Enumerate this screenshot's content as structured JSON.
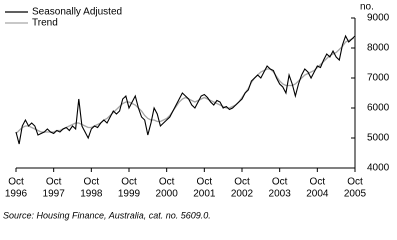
{
  "chart_data": {
    "type": "line",
    "x": [
      "1996-10",
      "1996-11",
      "1996-12",
      "1997-01",
      "1997-02",
      "1997-03",
      "1997-04",
      "1997-05",
      "1997-06",
      "1997-07",
      "1997-08",
      "1997-09",
      "1997-10",
      "1997-11",
      "1997-12",
      "1998-01",
      "1998-02",
      "1998-03",
      "1998-04",
      "1998-05",
      "1998-06",
      "1998-07",
      "1998-08",
      "1998-09",
      "1998-10",
      "1998-11",
      "1998-12",
      "1999-01",
      "1999-02",
      "1999-03",
      "1999-04",
      "1999-05",
      "1999-06",
      "1999-07",
      "1999-08",
      "1999-09",
      "1999-10",
      "1999-11",
      "1999-12",
      "2000-01",
      "2000-02",
      "2000-03",
      "2000-04",
      "2000-05",
      "2000-06",
      "2000-07",
      "2000-08",
      "2000-09",
      "2000-10",
      "2000-11",
      "2000-12",
      "2001-01",
      "2001-02",
      "2001-03",
      "2001-04",
      "2001-05",
      "2001-06",
      "2001-07",
      "2001-08",
      "2001-09",
      "2001-10",
      "2001-11",
      "2001-12",
      "2002-01",
      "2002-02",
      "2002-03",
      "2002-04",
      "2002-05",
      "2002-06",
      "2002-07",
      "2002-08",
      "2002-09",
      "2002-10",
      "2002-11",
      "2002-12",
      "2003-01",
      "2003-02",
      "2003-03",
      "2003-04",
      "2003-05",
      "2003-06",
      "2003-07",
      "2003-08",
      "2003-09",
      "2003-10",
      "2003-11",
      "2003-12",
      "2004-01",
      "2004-02",
      "2004-03",
      "2004-04",
      "2004-05",
      "2004-06",
      "2004-07",
      "2004-08",
      "2004-09",
      "2004-10",
      "2004-11",
      "2004-12",
      "2005-01",
      "2005-02",
      "2005-03",
      "2005-04",
      "2005-05",
      "2005-06",
      "2005-07",
      "2005-08",
      "2005-09",
      "2005-10"
    ],
    "series": [
      {
        "name": "Seasonally Adjusted",
        "color": "#000000",
        "values": [
          5200,
          4800,
          5400,
          5600,
          5400,
          5500,
          5400,
          5100,
          5150,
          5200,
          5300,
          5200,
          5150,
          5250,
          5200,
          5300,
          5350,
          5250,
          5400,
          5300,
          6300,
          5400,
          5200,
          5000,
          5300,
          5400,
          5350,
          5500,
          5600,
          5500,
          5700,
          5900,
          5800,
          5900,
          6300,
          6400,
          6000,
          6200,
          6400,
          6000,
          5700,
          5600,
          5100,
          5500,
          6000,
          5800,
          5400,
          5500,
          5600,
          5700,
          5900,
          6100,
          6300,
          6500,
          6400,
          6300,
          6100,
          6000,
          6200,
          6400,
          6450,
          6350,
          6200,
          6100,
          6250,
          6200,
          6000,
          6050,
          5950,
          6000,
          6100,
          6200,
          6300,
          6500,
          6600,
          6900,
          7000,
          7100,
          7000,
          7200,
          7400,
          7300,
          7250,
          7000,
          6800,
          6700,
          6500,
          7100,
          6800,
          6400,
          6800,
          7100,
          7300,
          7200,
          7000,
          7200,
          7400,
          7350,
          7600,
          7800,
          7700,
          7900,
          7700,
          7600,
          8100,
          8400,
          8200,
          8300,
          8400
        ]
      },
      {
        "name": "Trend",
        "color": "#a6a6a6",
        "values": [
          5150,
          5250,
          5350,
          5400,
          5400,
          5350,
          5300,
          5250,
          5200,
          5200,
          5200,
          5200,
          5200,
          5250,
          5250,
          5300,
          5350,
          5400,
          5450,
          5500,
          5500,
          5450,
          5400,
          5350,
          5350,
          5400,
          5450,
          5500,
          5600,
          5650,
          5750,
          5850,
          5950,
          6050,
          6150,
          6200,
          6200,
          6150,
          6100,
          6000,
          5900,
          5750,
          5650,
          5600,
          5600,
          5550,
          5550,
          5600,
          5650,
          5750,
          5900,
          6050,
          6200,
          6300,
          6350,
          6300,
          6250,
          6200,
          6250,
          6300,
          6350,
          6300,
          6250,
          6200,
          6150,
          6100,
          6050,
          6000,
          6000,
          6050,
          6100,
          6200,
          6350,
          6500,
          6650,
          6850,
          7000,
          7100,
          7200,
          7250,
          7300,
          7300,
          7200,
          7050,
          6900,
          6800,
          6750,
          6750,
          6750,
          6800,
          6900,
          7000,
          7100,
          7150,
          7200,
          7250,
          7350,
          7450,
          7550,
          7650,
          7750,
          7800,
          7850,
          7950,
          8050,
          8200,
          8250,
          8300,
          8350
        ]
      }
    ],
    "xlim": [
      "1996-10",
      "2005-10"
    ],
    "xticks": [
      {
        "value": "1996-10",
        "label": [
          "Oct",
          "1996"
        ]
      },
      {
        "value": "1997-10",
        "label": [
          "Oct",
          "1997"
        ]
      },
      {
        "value": "1998-10",
        "label": [
          "Oct",
          "1998"
        ]
      },
      {
        "value": "1999-10",
        "label": [
          "Oct",
          "1999"
        ]
      },
      {
        "value": "2000-10",
        "label": [
          "Oct",
          "2000"
        ]
      },
      {
        "value": "2001-10",
        "label": [
          "Oct",
          "2001"
        ]
      },
      {
        "value": "2002-10",
        "label": [
          "Oct",
          "2002"
        ]
      },
      {
        "value": "2003-10",
        "label": [
          "Oct",
          "2003"
        ]
      },
      {
        "value": "2004-10",
        "label": [
          "Oct",
          "2004"
        ]
      },
      {
        "value": "2005-10",
        "label": [
          "Oct",
          "2005"
        ]
      }
    ],
    "ylim": [
      4000,
      9000
    ],
    "yticks": [
      4000,
      5000,
      6000,
      7000,
      8000,
      9000
    ],
    "ylabel": "no.",
    "legend": "top-left",
    "source": "Source: Housing Finance, Australia, cat. no. 5609.0."
  }
}
